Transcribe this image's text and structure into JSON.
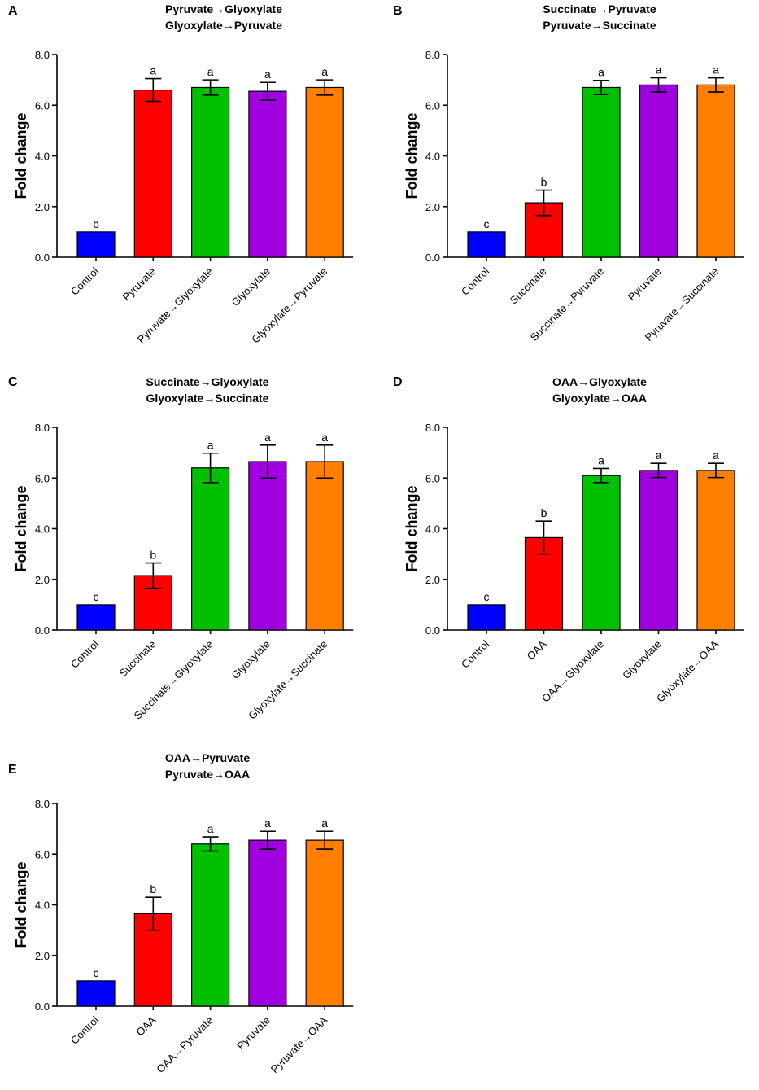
{
  "chart_data": [
    {
      "panel": "A",
      "type": "bar",
      "title": [
        "Pyruvate→Glyoxylate",
        "Glyoxylate→Pyruvate"
      ],
      "ylabel": "Fold change",
      "ylim": [
        0,
        8
      ],
      "yticks": [
        "0.0",
        "2.0",
        "4.0",
        "6.0",
        "8.0"
      ],
      "categories": [
        "Control",
        "Pyruvate",
        "Pyruvate→Glyoxylate",
        "Glyoxylate",
        "Glyoxylate→Pyruvate"
      ],
      "values": [
        1.0,
        6.6,
        6.7,
        6.55,
        6.7
      ],
      "errors": [
        0,
        0.45,
        0.3,
        0.35,
        0.3
      ],
      "letters": [
        "b",
        "a",
        "a",
        "a",
        "a"
      ],
      "colors": [
        "#0000ff",
        "#ff0000",
        "#00c000",
        "#a000e0",
        "#ff8000"
      ]
    },
    {
      "panel": "B",
      "type": "bar",
      "title": [
        "Succinate→Pyruvate",
        "Pyruvate→Succinate"
      ],
      "ylabel": "Fold change",
      "ylim": [
        0,
        8
      ],
      "yticks": [
        "0.0",
        "2.0",
        "4.0",
        "6.0",
        "8.0"
      ],
      "categories": [
        "Control",
        "Succinate",
        "Succinate→Pyruvate",
        "Pyruvate",
        "Pyruvate→Succinate"
      ],
      "values": [
        1.0,
        2.15,
        6.7,
        6.8,
        6.8
      ],
      "errors": [
        0,
        0.5,
        0.28,
        0.28,
        0.28
      ],
      "letters": [
        "c",
        "b",
        "a",
        "a",
        "a"
      ],
      "colors": [
        "#0000ff",
        "#ff0000",
        "#00c000",
        "#a000e0",
        "#ff8000"
      ]
    },
    {
      "panel": "C",
      "type": "bar",
      "title": [
        "Succinate→Glyoxylate",
        "Glyoxylate→Succinate"
      ],
      "ylabel": "Fold change",
      "ylim": [
        0,
        8
      ],
      "yticks": [
        "0.0",
        "2.0",
        "4.0",
        "6.0",
        "8.0"
      ],
      "categories": [
        "Control",
        "Succinate",
        "Succinate→Glyoxylate",
        "Glyoxylate",
        "Glyoxylate→Succinate"
      ],
      "values": [
        1.0,
        2.15,
        6.4,
        6.65,
        6.65
      ],
      "errors": [
        0,
        0.5,
        0.58,
        0.65,
        0.65
      ],
      "letters": [
        "c",
        "b",
        "a",
        "a",
        "a"
      ],
      "colors": [
        "#0000ff",
        "#ff0000",
        "#00c000",
        "#a000e0",
        "#ff8000"
      ]
    },
    {
      "panel": "D",
      "type": "bar",
      "title": [
        "OAA→Glyoxylate",
        "Glyoxylate→OAA"
      ],
      "ylabel": "Fold change",
      "ylim": [
        0,
        8
      ],
      "yticks": [
        "0.0",
        "2.0",
        "4.0",
        "6.0",
        "8.0"
      ],
      "categories": [
        "Control",
        "OAA",
        "OAA→Glyoxylate",
        "Glyoxylate",
        "Glyoxylate→OAA"
      ],
      "values": [
        1.0,
        3.65,
        6.1,
        6.3,
        6.3
      ],
      "errors": [
        0,
        0.65,
        0.28,
        0.28,
        0.28
      ],
      "letters": [
        "c",
        "b",
        "a",
        "a",
        "a"
      ],
      "colors": [
        "#0000ff",
        "#ff0000",
        "#00c000",
        "#a000e0",
        "#ff8000"
      ]
    },
    {
      "panel": "E",
      "type": "bar",
      "title": [
        "OAA→Pyruvate",
        "Pyruvate→OAA"
      ],
      "ylabel": "Fold change",
      "ylim": [
        0,
        8
      ],
      "yticks": [
        "0.0",
        "2.0",
        "4.0",
        "6.0",
        "8.0"
      ],
      "categories": [
        "Control",
        "OAA",
        "OAA→Pyruvate",
        "Pyruvate",
        "Pyruvate→OAA"
      ],
      "values": [
        1.0,
        3.65,
        6.4,
        6.55,
        6.55
      ],
      "errors": [
        0,
        0.65,
        0.28,
        0.35,
        0.35
      ],
      "letters": [
        "c",
        "b",
        "a",
        "a",
        "a"
      ],
      "colors": [
        "#0000ff",
        "#ff0000",
        "#00c000",
        "#a000e0",
        "#ff8000"
      ]
    }
  ]
}
